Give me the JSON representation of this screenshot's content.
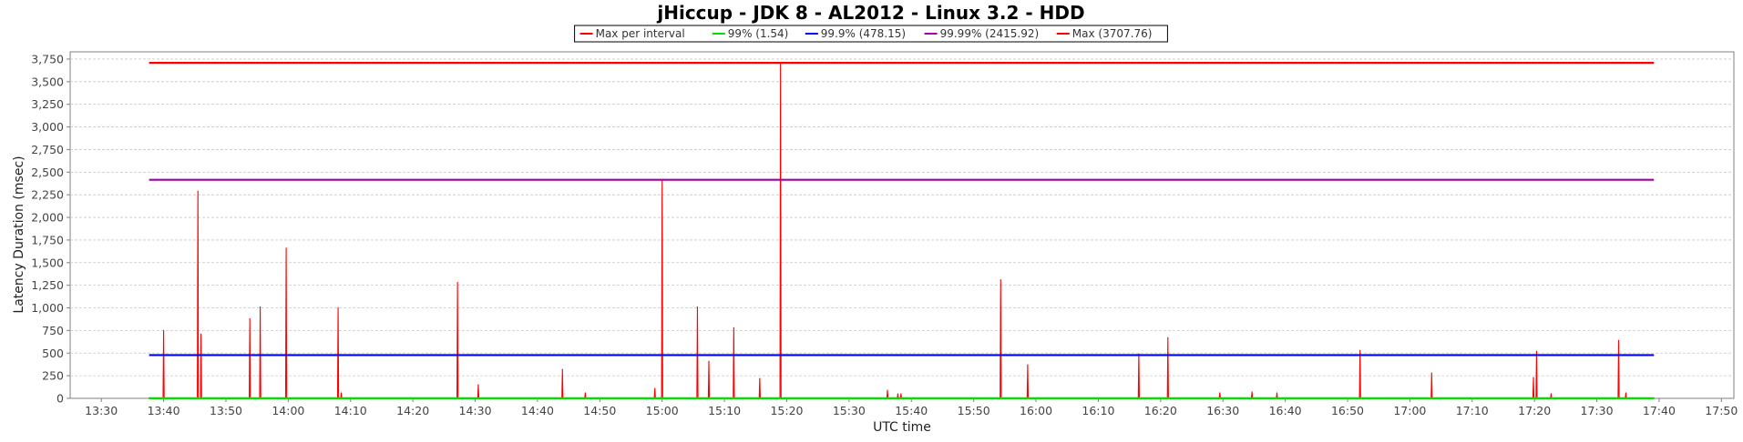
{
  "chart_data": {
    "type": "line",
    "title": "jHiccup - JDK 8 - AL2012 - Linux 3.2 - HDD",
    "xlabel": "UTC time",
    "ylabel": "Latency Duration (msec)",
    "xlim": [
      "13:25",
      "17:52"
    ],
    "ylim": [
      0,
      3830
    ],
    "grid": true,
    "legend_position": "top",
    "x_ticks": [
      "13:30",
      "13:40",
      "13:50",
      "14:00",
      "14:10",
      "14:20",
      "14:30",
      "14:40",
      "14:50",
      "15:00",
      "15:10",
      "15:20",
      "15:30",
      "15:40",
      "15:50",
      "16:00",
      "16:10",
      "16:20",
      "16:30",
      "16:40",
      "16:50",
      "17:00",
      "17:10",
      "17:20",
      "17:30",
      "17:40",
      "17:50"
    ],
    "y_ticks": [
      0,
      250,
      500,
      750,
      1000,
      1250,
      1500,
      1750,
      2000,
      2250,
      2500,
      2750,
      3000,
      3250,
      3500,
      3750
    ],
    "y_tick_labels": [
      "0",
      "250",
      "500",
      "750",
      "1,000",
      "1,250",
      "1,500",
      "1,750",
      "2,000",
      "2,250",
      "2,500",
      "2,750",
      "3,000",
      "3,250",
      "3,500",
      "3,750"
    ],
    "legend": [
      {
        "label": "Max per interval",
        "color": "#ff0000"
      },
      {
        "label": "99% (1.54)",
        "color": "#00e000"
      },
      {
        "label": "99.9% (478.15)",
        "color": "#0000ff"
      },
      {
        "label": "99.99% (2415.92)",
        "color": "#a000a0"
      },
      {
        "label": "Max (3707.76)",
        "color": "#ff0000"
      }
    ],
    "series": [
      {
        "name": "Max per interval",
        "color": "#ff0000",
        "baseline": 3,
        "points": [
          [
            "13:37:40",
            3
          ],
          [
            "13:40:00",
            750
          ],
          [
            "13:45:30",
            2290
          ],
          [
            "13:46:00",
            710
          ],
          [
            "13:53:50",
            880
          ],
          [
            "13:55:30",
            1010
          ],
          [
            "13:59:40",
            1660
          ],
          [
            "14:08:00",
            1000
          ],
          [
            "14:08:30",
            60
          ],
          [
            "14:27:10",
            1280
          ],
          [
            "14:30:30",
            150
          ],
          [
            "14:44:00",
            320
          ],
          [
            "14:47:40",
            60
          ],
          [
            "14:58:50",
            110
          ],
          [
            "15:00:00",
            2410
          ],
          [
            "15:05:40",
            1010
          ],
          [
            "15:07:30",
            410
          ],
          [
            "15:11:30",
            780
          ],
          [
            "15:15:40",
            220
          ],
          [
            "15:19:00",
            3710
          ],
          [
            "15:36:10",
            90
          ],
          [
            "15:37:50",
            50
          ],
          [
            "15:38:20",
            50
          ],
          [
            "15:54:20",
            1310
          ],
          [
            "15:58:40",
            370
          ],
          [
            "16:16:30",
            490
          ],
          [
            "16:21:10",
            670
          ],
          [
            "16:29:30",
            60
          ],
          [
            "16:34:40",
            70
          ],
          [
            "16:38:40",
            60
          ],
          [
            "16:52:00",
            530
          ],
          [
            "17:03:30",
            280
          ],
          [
            "17:19:50",
            230
          ],
          [
            "17:20:20",
            520
          ],
          [
            "17:22:40",
            50
          ],
          [
            "17:33:30",
            640
          ],
          [
            "17:34:40",
            60
          ],
          [
            "17:39:10",
            3
          ]
        ]
      },
      {
        "name": "99% (1.54)",
        "color": "#00e000",
        "start": "13:37:40",
        "end": "17:39:10",
        "value": 1.54
      },
      {
        "name": "99.9% (478.15)",
        "color": "#0000ff",
        "start": "13:37:40",
        "end": "17:39:10",
        "value": 478.15
      },
      {
        "name": "99.99% (2415.92)",
        "color": "#a000a0",
        "start": "13:37:40",
        "end": "17:39:10",
        "value": 2415.92
      },
      {
        "name": "Max (3707.76)",
        "color": "#ff0000",
        "start": "13:37:40",
        "end": "17:39:10",
        "value": 3707.76
      }
    ]
  }
}
